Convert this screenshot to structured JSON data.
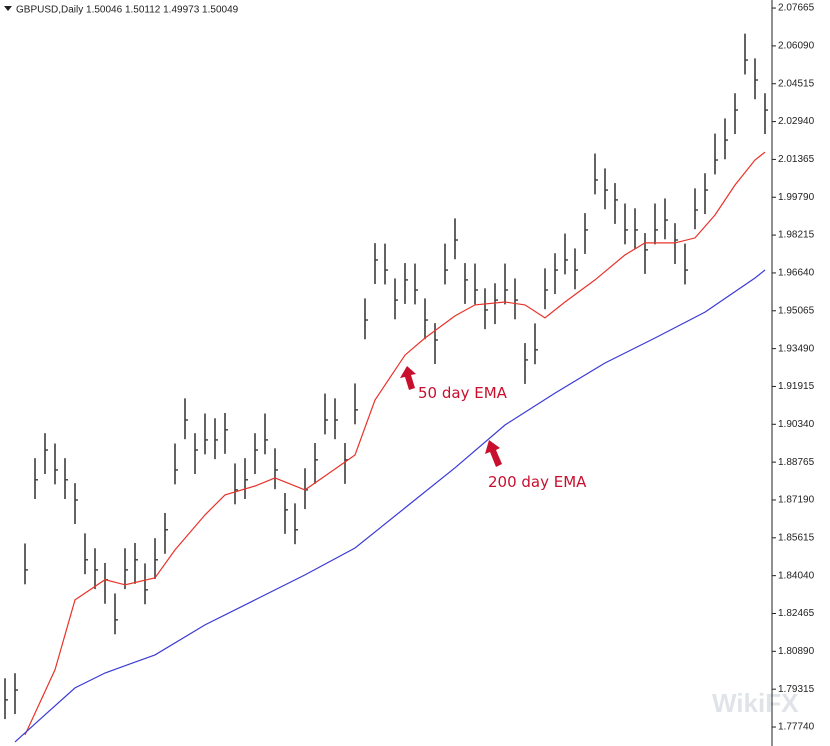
{
  "chart_data": {
    "type": "ohlc",
    "title": "GBPUSD,Daily  1.50046 1.50112 1.49973 1.50049",
    "watermark": "WikiFX",
    "color": "#3c3c3c",
    "annotation_color": "#c8102e",
    "xlim": [
      -0.5,
      76.7
    ],
    "ylim": [
      1.7695,
      2.08
    ],
    "yticks": [
      {
        "value": 2.07665,
        "label": "2.07665"
      },
      {
        "value": 2.0609,
        "label": "2.06090"
      },
      {
        "value": 2.04515,
        "label": "2.04515"
      },
      {
        "value": 2.0294,
        "label": "2.02940"
      },
      {
        "value": 2.01365,
        "label": "2.01365"
      },
      {
        "value": 1.9979,
        "label": "1.99790"
      },
      {
        "value": 1.98215,
        "label": "1.98215"
      },
      {
        "value": 1.9664,
        "label": "1.96640"
      },
      {
        "value": 1.95065,
        "label": "1.95065"
      },
      {
        "value": 1.9349,
        "label": "1.93490"
      },
      {
        "value": 1.91915,
        "label": "1.91915"
      },
      {
        "value": 1.9034,
        "label": "1.90340"
      },
      {
        "value": 1.88765,
        "label": "1.88765"
      },
      {
        "value": 1.8719,
        "label": "1.87190"
      },
      {
        "value": 1.85615,
        "label": "1.85615"
      },
      {
        "value": 1.8404,
        "label": "1.84040"
      },
      {
        "value": 1.82465,
        "label": "1.82465"
      },
      {
        "value": 1.8089,
        "label": "1.80890"
      },
      {
        "value": 1.79315,
        "label": "1.79315"
      },
      {
        "value": 1.7774,
        "label": "1.77740"
      }
    ],
    "high": [
      1.7977,
      1.7998,
      1.8538,
      1.8893,
      1.8997,
      1.8954,
      1.8893,
      1.8789,
      1.858,
      1.8518,
      1.8457,
      1.833,
      1.8518,
      1.854,
      1.8455,
      1.856,
      1.8665,
      1.8954,
      1.9142,
      1.8997,
      1.9079,
      1.9059,
      1.9081,
      1.8871,
      1.8893,
      1.8997,
      1.9079,
      1.8934,
      1.8748,
      1.8705,
      1.8851,
      1.8956,
      1.9162,
      1.9142,
      1.8956,
      1.9204,
      1.9558,
      1.9788,
      1.9786,
      1.9641,
      1.9705,
      1.9703,
      1.9558,
      1.9455,
      1.9786,
      1.9891,
      1.9705,
      1.9703,
      1.96,
      1.9621,
      1.9703,
      1.9641,
      1.9372,
      1.9454,
      1.9683,
      1.9746,
      1.9828,
      1.9766,
      1.9913,
      2.0161,
      2.0099,
      2.0038,
      1.9953,
      1.9933,
      1.983,
      1.9953,
      1.9974,
      1.9871,
      1.9786,
      2.0016,
      2.0079,
      2.0244,
      2.0307,
      2.0412,
      2.066,
      2.0557,
      2.0412
    ],
    "low": [
      1.7807,
      1.7828,
      1.8368,
      1.8723,
      1.8827,
      1.8784,
      1.8723,
      1.8619,
      1.841,
      1.8348,
      1.8287,
      1.816,
      1.8348,
      1.837,
      1.8285,
      1.839,
      1.8495,
      1.8784,
      1.8972,
      1.8827,
      1.8909,
      1.8889,
      1.8911,
      1.8701,
      1.8723,
      1.8827,
      1.8909,
      1.8764,
      1.8578,
      1.8535,
      1.8681,
      1.8786,
      1.8992,
      1.8972,
      1.8786,
      1.9034,
      1.9388,
      1.9618,
      1.9616,
      1.9471,
      1.9535,
      1.9533,
      1.9388,
      1.9285,
      1.9616,
      1.9721,
      1.9535,
      1.9533,
      1.943,
      1.9451,
      1.9533,
      1.9471,
      1.9202,
      1.9284,
      1.9513,
      1.9576,
      1.9658,
      1.9596,
      1.9743,
      1.9991,
      1.9929,
      1.9868,
      1.9783,
      1.9763,
      1.966,
      1.9783,
      1.9804,
      1.9701,
      1.9616,
      1.9846,
      1.9909,
      2.0074,
      2.0137,
      2.0242,
      2.049,
      2.0387,
      2.0242
    ],
    "close": [
      1.7887,
      1.7928,
      1.8428,
      1.8803,
      1.8927,
      1.8844,
      1.8803,
      1.8719,
      1.847,
      1.8428,
      1.8387,
      1.822,
      1.8428,
      1.847,
      1.8345,
      1.847,
      1.8595,
      1.8844,
      1.9052,
      1.8927,
      1.8969,
      1.8969,
      1.9011,
      1.8761,
      1.8803,
      1.8927,
      1.8969,
      1.8844,
      1.8678,
      1.8595,
      1.8761,
      1.8886,
      1.9052,
      1.9052,
      1.8886,
      1.9094,
      1.9468,
      1.9718,
      1.9676,
      1.9551,
      1.9635,
      1.9593,
      1.9468,
      1.9385,
      1.9676,
      1.9801,
      1.9635,
      1.9593,
      1.951,
      1.9551,
      1.9593,
      1.9551,
      1.9302,
      1.9344,
      1.9593,
      1.9676,
      1.9718,
      1.9676,
      1.9843,
      2.0051,
      2.0009,
      1.9968,
      1.9843,
      1.9843,
      1.976,
      1.9843,
      1.9884,
      1.9801,
      1.9676,
      1.9926,
      2.0009,
      2.0134,
      2.0217,
      2.0342,
      2.055,
      2.0467,
      2.0342
    ],
    "series": [
      {
        "name": "50 day EMA",
        "color": "#e8332a",
        "x": [
          2,
          5,
          7,
          10,
          12,
          15,
          17,
          20,
          22,
          25,
          27,
          30,
          32,
          35,
          37,
          40,
          42,
          45,
          47,
          50,
          52,
          54,
          56,
          59,
          62,
          64,
          67,
          69,
          71,
          73,
          75,
          76
        ],
        "values": [
          1.7741,
          1.8012,
          1.8303,
          1.8387,
          1.8366,
          1.8395,
          1.8511,
          1.8657,
          1.874,
          1.8777,
          1.8811,
          1.8761,
          1.8819,
          1.8906,
          1.9135,
          1.9322,
          1.9393,
          1.9485,
          1.9531,
          1.9543,
          1.9531,
          1.9477,
          1.9543,
          1.9635,
          1.9739,
          1.9789,
          1.9789,
          1.981,
          1.9905,
          2.003,
          2.0134,
          2.0167
        ]
      },
      {
        "name": "200 day EMA",
        "color": "#3a3ad6",
        "x": [
          1,
          4,
          7,
          10,
          15,
          20,
          25,
          30,
          35,
          40,
          45,
          50,
          55,
          60,
          65,
          70,
          75,
          76
        ],
        "values": [
          1.7712,
          1.7825,
          1.7937,
          1.7999,
          1.8074,
          1.8199,
          1.8303,
          1.8407,
          1.8519,
          1.8686,
          1.8853,
          1.9031,
          1.9164,
          1.9289,
          1.9393,
          1.9501,
          1.9643,
          1.9676
        ]
      }
    ]
  }
}
